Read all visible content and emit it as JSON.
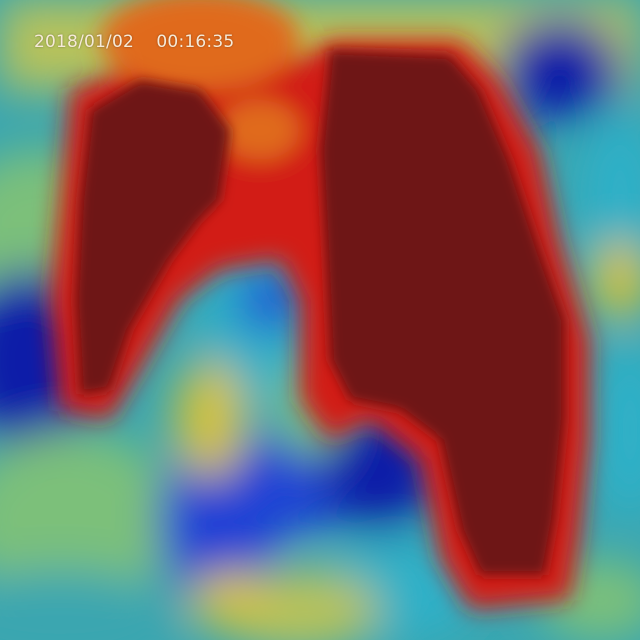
{
  "overlay": {
    "date": "2018/01/02",
    "time": "00:16:35"
  },
  "heatmap": {
    "colormap": "jet",
    "colors": {
      "dark_blue": "#0a1aa8",
      "blue": "#1a3fd6",
      "cyan": "#2fb0c8",
      "teal": "#3aa6b0",
      "green": "#7cc07a",
      "yellow": "#d6c23a",
      "orange": "#e06a1a",
      "red": "#d21e14",
      "dark_red": "#6e1212"
    }
  }
}
